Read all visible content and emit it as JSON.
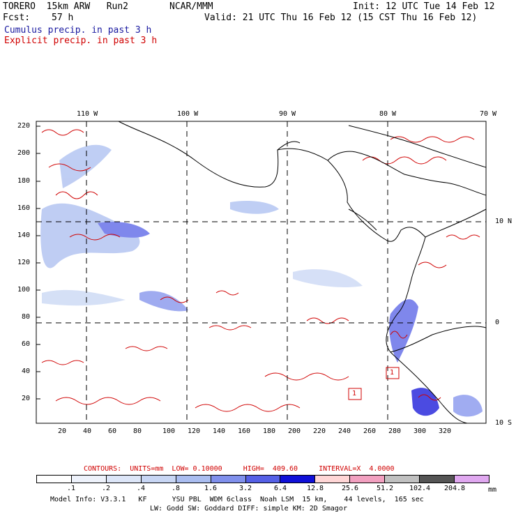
{
  "header": {
    "model": "TORERO  15km ARW   Run2",
    "center": "NCAR/MMM",
    "init": "Init: 12 UTC Tue 14 Feb 12",
    "fcst_label": "Fcst:",
    "fcst_value": "57 h",
    "valid": "Valid: 21 UTC Thu 16 Feb 12 (15 CST Thu 16 Feb 12)",
    "line_blue": "Cumulus precip. in past 3 h",
    "line_red": "Explicit precip. in past 3 h"
  },
  "axes": {
    "top_lon": [
      "110 W",
      "100 W",
      "90 W",
      "80 W",
      "70 W"
    ],
    "right_lat": [
      "10 N",
      "0",
      "10 S"
    ],
    "y_ticks": [
      "220",
      "200",
      "180",
      "160",
      "140",
      "120",
      "100",
      "80",
      "60",
      "40",
      "20"
    ],
    "x_ticks": [
      "20",
      "40",
      "60",
      "80",
      "100",
      "120",
      "140",
      "160",
      "180",
      "200",
      "220",
      "240",
      "260",
      "280",
      "300",
      "320"
    ]
  },
  "contours_info": "CONTOURS:  UNITS=mm  LOW= 0.10000     HIGH=  409.60     INTERVAL=X  4.0000",
  "box_labels": [
    "1",
    "1"
  ],
  "legend": {
    "labels": [
      ".1",
      ".2",
      ".4",
      ".8",
      "1.6",
      "3.2",
      "6.4",
      "12.8",
      "25.6",
      "51.2",
      "102.4",
      "204.8"
    ],
    "unit": "mm",
    "colors": [
      "#ffffff",
      "#eef2fb",
      "#dde6f8",
      "#c8d6f4",
      "#aabdf0",
      "#8090ec",
      "#5560e6",
      "#1010d8",
      "#ffd6d6",
      "#f2a0c0",
      "#c0c0c0",
      "#555555",
      "#e0a8f0"
    ]
  },
  "footer": {
    "line1": "Model Info: V3.3.1   KF      YSU PBL  WDM 6class  Noah LSM  15 km,    44 levels,  165 sec",
    "line2": "LW: Godd SW: Goddard DIFF: simple KM: 2D Smagor"
  }
}
